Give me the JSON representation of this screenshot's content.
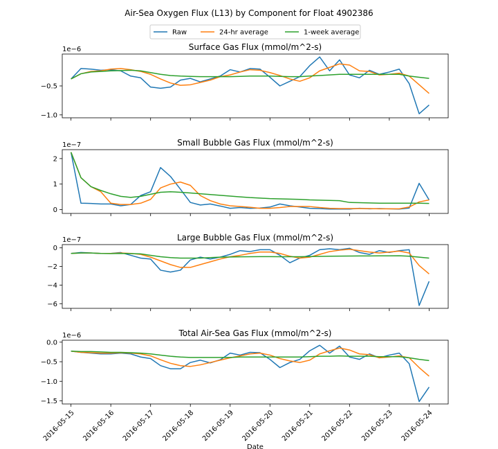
{
  "figure": {
    "suptitle": "Air-Sea Oxygen Flux (L13) by Component for Float 4902386",
    "xlabel": "Date",
    "legend": {
      "placement": "top-center",
      "entries": [
        {
          "label": "Raw",
          "color": "#1f77b4"
        },
        {
          "label": "24-hr average",
          "color": "#ff7f0e"
        },
        {
          "label": "1-week average",
          "color": "#2ca02c"
        }
      ]
    },
    "x_ticks": [
      "2016-05-15",
      "2016-05-16",
      "2016-05-17",
      "2016-05-18",
      "2016-05-19",
      "2016-05-20",
      "2016-05-21",
      "2016-05-22",
      "2016-05-23",
      "2016-05-24"
    ],
    "x_range": [
      "2016-05-14.78",
      "2016-05-24.48"
    ]
  },
  "chart_data": [
    {
      "type": "line",
      "title": "Surface Gas Flux (mmol/m^2-s)",
      "scale_label": "1e−6",
      "ylim": [
        -1.05,
        0.05
      ],
      "yticks": [
        {
          "v": -0.5,
          "label": "−0.5"
        },
        {
          "v": -1.0,
          "label": "−1.0"
        }
      ],
      "x": [
        0,
        0.25,
        0.5,
        0.75,
        1,
        1.25,
        1.5,
        1.75,
        2,
        2.25,
        2.5,
        2.75,
        3,
        3.25,
        3.5,
        3.75,
        4,
        4.25,
        4.5,
        4.75,
        5,
        5.25,
        5.5,
        5.75,
        6,
        6.25,
        6.5,
        6.75,
        7,
        7.25,
        7.5,
        7.75,
        8,
        8.25,
        8.5,
        8.75,
        9
      ],
      "series": [
        {
          "name": "Raw",
          "color": "#1f77b4",
          "values": [
            -0.38,
            -0.2,
            -0.21,
            -0.23,
            -0.22,
            -0.24,
            -0.33,
            -0.36,
            -0.52,
            -0.54,
            -0.52,
            -0.4,
            -0.37,
            -0.43,
            -0.38,
            -0.33,
            -0.22,
            -0.26,
            -0.2,
            -0.21,
            -0.35,
            -0.5,
            -0.42,
            -0.34,
            -0.15,
            0.0,
            -0.24,
            -0.05,
            -0.31,
            -0.36,
            -0.23,
            -0.3,
            -0.26,
            -0.21,
            -0.46,
            -0.98,
            -0.83
          ]
        },
        {
          "name": "24-hr average",
          "color": "#ff7f0e",
          "values": [
            -0.38,
            -0.29,
            -0.25,
            -0.24,
            -0.21,
            -0.2,
            -0.22,
            -0.25,
            -0.3,
            -0.38,
            -0.45,
            -0.49,
            -0.48,
            -0.44,
            -0.4,
            -0.34,
            -0.31,
            -0.26,
            -0.22,
            -0.23,
            -0.27,
            -0.32,
            -0.38,
            -0.42,
            -0.36,
            -0.24,
            -0.18,
            -0.12,
            -0.14,
            -0.24,
            -0.25,
            -0.31,
            -0.3,
            -0.28,
            -0.33,
            -0.48,
            -0.63
          ]
        },
        {
          "name": "1-week average",
          "color": "#2ca02c",
          "values": [
            -0.38,
            -0.29,
            -0.26,
            -0.25,
            -0.24,
            -0.235,
            -0.23,
            -0.24,
            -0.27,
            -0.3,
            -0.32,
            -0.33,
            -0.335,
            -0.34,
            -0.34,
            -0.34,
            -0.34,
            -0.335,
            -0.33,
            -0.33,
            -0.33,
            -0.335,
            -0.34,
            -0.34,
            -0.33,
            -0.32,
            -0.31,
            -0.3,
            -0.3,
            -0.3,
            -0.3,
            -0.3,
            -0.3,
            -0.3,
            -0.33,
            -0.35,
            -0.37
          ]
        }
      ]
    },
    {
      "type": "line",
      "title": "Small Bubble Gas Flux (mmol/m^2-s)",
      "scale_label": "1e−7",
      "ylim": [
        -0.15,
        2.35
      ],
      "yticks": [
        {
          "v": 0,
          "label": "0"
        },
        {
          "v": 1,
          "label": "1"
        },
        {
          "v": 2,
          "label": "2"
        }
      ],
      "x": [
        0,
        0.25,
        0.5,
        0.75,
        1,
        1.25,
        1.5,
        1.75,
        2,
        2.25,
        2.5,
        2.75,
        3,
        3.25,
        3.5,
        3.75,
        4,
        4.25,
        4.5,
        4.75,
        5,
        5.25,
        5.5,
        5.75,
        6,
        6.25,
        6.5,
        6.75,
        7,
        7.25,
        7.5,
        7.75,
        8,
        8.25,
        8.5,
        8.75,
        9
      ],
      "series": [
        {
          "name": "Raw",
          "color": "#1f77b4",
          "values": [
            2.25,
            0.25,
            0.24,
            0.22,
            0.22,
            0.15,
            0.2,
            0.55,
            0.7,
            1.65,
            1.3,
            0.8,
            0.28,
            0.18,
            0.22,
            0.14,
            0.05,
            0.08,
            0.05,
            0.06,
            0.1,
            0.22,
            0.15,
            0.1,
            0.05,
            0.04,
            0.02,
            0.02,
            0.02,
            0.05,
            0.03,
            0.04,
            0.03,
            0.02,
            0.06,
            1.03,
            0.38
          ]
        },
        {
          "name": "24-hr average",
          "color": "#ff7f0e",
          "values": [
            2.25,
            1.25,
            0.9,
            0.7,
            0.25,
            0.2,
            0.2,
            0.25,
            0.4,
            0.85,
            1.0,
            1.08,
            0.95,
            0.55,
            0.35,
            0.22,
            0.15,
            0.12,
            0.09,
            0.05,
            0.05,
            0.08,
            0.12,
            0.12,
            0.12,
            0.08,
            0.05,
            0.04,
            0.04,
            0.04,
            0.04,
            0.03,
            0.03,
            0.03,
            0.1,
            0.3,
            0.38
          ]
        },
        {
          "name": "1-week average",
          "color": "#2ca02c",
          "values": [
            2.25,
            1.25,
            0.9,
            0.75,
            0.62,
            0.52,
            0.48,
            0.52,
            0.6,
            0.68,
            0.7,
            0.68,
            0.65,
            0.62,
            0.59,
            0.56,
            0.53,
            0.5,
            0.47,
            0.45,
            0.43,
            0.42,
            0.41,
            0.4,
            0.38,
            0.37,
            0.36,
            0.35,
            0.28,
            0.27,
            0.26,
            0.25,
            0.25,
            0.25,
            0.25,
            0.25,
            0.24
          ]
        }
      ]
    },
    {
      "type": "line",
      "title": "Large Bubble Gas Flux (mmol/m^2-s)",
      "scale_label": "1e−7",
      "ylim": [
        -6.5,
        0.35
      ],
      "yticks": [
        {
          "v": 0,
          "label": "0"
        },
        {
          "v": -2,
          "label": "−2"
        },
        {
          "v": -4,
          "label": "−4"
        },
        {
          "v": -6,
          "label": "−6"
        }
      ],
      "x": [
        0,
        0.25,
        0.5,
        0.75,
        1,
        1.25,
        1.5,
        1.75,
        2,
        2.25,
        2.5,
        2.75,
        3,
        3.25,
        3.5,
        3.75,
        4,
        4.25,
        4.5,
        4.75,
        5,
        5.25,
        5.5,
        5.75,
        6,
        6.25,
        6.5,
        6.75,
        7,
        7.25,
        7.5,
        7.75,
        8,
        8.25,
        8.5,
        8.75,
        9
      ],
      "series": [
        {
          "name": "Raw",
          "color": "#1f77b4",
          "values": [
            -0.6,
            -0.5,
            -0.55,
            -0.6,
            -0.6,
            -0.5,
            -0.8,
            -1.1,
            -1.2,
            -2.4,
            -2.6,
            -2.4,
            -1.3,
            -1.0,
            -1.2,
            -1.0,
            -0.7,
            -0.3,
            -0.4,
            -0.2,
            -0.2,
            -0.8,
            -1.6,
            -1.1,
            -0.8,
            -0.2,
            -0.1,
            -0.2,
            -0.05,
            -0.5,
            -0.7,
            -0.3,
            -0.5,
            -0.3,
            -0.2,
            -6.2,
            -3.6
          ]
        },
        {
          "name": "24-hr average",
          "color": "#ff7f0e",
          "values": [
            -0.6,
            -0.55,
            -0.55,
            -0.6,
            -0.6,
            -0.55,
            -0.6,
            -0.7,
            -1.0,
            -1.4,
            -1.8,
            -2.1,
            -2.1,
            -1.8,
            -1.5,
            -1.2,
            -0.95,
            -0.8,
            -0.6,
            -0.45,
            -0.45,
            -0.6,
            -0.9,
            -1.1,
            -1.0,
            -0.7,
            -0.4,
            -0.25,
            -0.15,
            -0.3,
            -0.45,
            -0.55,
            -0.45,
            -0.35,
            -0.55,
            -1.9,
            -2.8
          ]
        },
        {
          "name": "1-week average",
          "color": "#2ca02c",
          "values": [
            -0.6,
            -0.55,
            -0.55,
            -0.6,
            -0.62,
            -0.6,
            -0.62,
            -0.65,
            -0.8,
            -0.95,
            -1.05,
            -1.1,
            -1.1,
            -1.1,
            -1.05,
            -1.0,
            -0.98,
            -0.96,
            -0.95,
            -0.94,
            -0.94,
            -0.95,
            -0.95,
            -0.95,
            -0.93,
            -0.92,
            -0.9,
            -0.89,
            -0.88,
            -0.87,
            -0.87,
            -0.86,
            -0.86,
            -0.85,
            -0.9,
            -1.0,
            -1.1
          ]
        }
      ]
    },
    {
      "type": "line",
      "title": "Total Air-Sea Gas Flux (mmol/m^2-s)",
      "scale_label": "1e−6",
      "ylim": [
        -1.58,
        0.05
      ],
      "yticks": [
        {
          "v": 0.0,
          "label": "0.0"
        },
        {
          "v": -0.5,
          "label": "−0.5"
        },
        {
          "v": -1.0,
          "label": "−1.0"
        },
        {
          "v": -1.5,
          "label": "−1.5"
        }
      ],
      "x": [
        0,
        0.25,
        0.5,
        0.75,
        1,
        1.25,
        1.5,
        1.75,
        2,
        2.25,
        2.5,
        2.75,
        3,
        3.25,
        3.5,
        3.75,
        4,
        4.25,
        4.5,
        4.75,
        5,
        5.25,
        5.5,
        5.75,
        6,
        6.25,
        6.5,
        6.75,
        7,
        7.25,
        7.5,
        7.75,
        8,
        8.25,
        8.5,
        8.75,
        9
      ],
      "series": [
        {
          "name": "Raw",
          "color": "#1f77b4",
          "values": [
            -0.23,
            -0.26,
            -0.28,
            -0.3,
            -0.3,
            -0.28,
            -0.3,
            -0.38,
            -0.42,
            -0.6,
            -0.68,
            -0.68,
            -0.52,
            -0.46,
            -0.53,
            -0.45,
            -0.28,
            -0.33,
            -0.26,
            -0.27,
            -0.44,
            -0.65,
            -0.52,
            -0.44,
            -0.22,
            -0.08,
            -0.28,
            -0.1,
            -0.38,
            -0.44,
            -0.3,
            -0.4,
            -0.33,
            -0.28,
            -0.55,
            -1.52,
            -1.15
          ]
        },
        {
          "name": "24-hr average",
          "color": "#ff7f0e",
          "values": [
            -0.23,
            -0.26,
            -0.27,
            -0.28,
            -0.28,
            -0.27,
            -0.28,
            -0.3,
            -0.35,
            -0.45,
            -0.54,
            -0.6,
            -0.62,
            -0.58,
            -0.52,
            -0.46,
            -0.4,
            -0.35,
            -0.3,
            -0.28,
            -0.33,
            -0.42,
            -0.48,
            -0.52,
            -0.46,
            -0.3,
            -0.22,
            -0.15,
            -0.2,
            -0.3,
            -0.32,
            -0.4,
            -0.38,
            -0.35,
            -0.4,
            -0.65,
            -0.87
          ]
        },
        {
          "name": "1-week average",
          "color": "#2ca02c",
          "values": [
            -0.23,
            -0.24,
            -0.24,
            -0.25,
            -0.26,
            -0.26,
            -0.27,
            -0.28,
            -0.3,
            -0.33,
            -0.36,
            -0.38,
            -0.39,
            -0.39,
            -0.39,
            -0.39,
            -0.39,
            -0.38,
            -0.38,
            -0.38,
            -0.38,
            -0.38,
            -0.38,
            -0.38,
            -0.37,
            -0.36,
            -0.36,
            -0.35,
            -0.36,
            -0.36,
            -0.36,
            -0.37,
            -0.37,
            -0.37,
            -0.4,
            -0.44,
            -0.47
          ]
        }
      ]
    }
  ]
}
